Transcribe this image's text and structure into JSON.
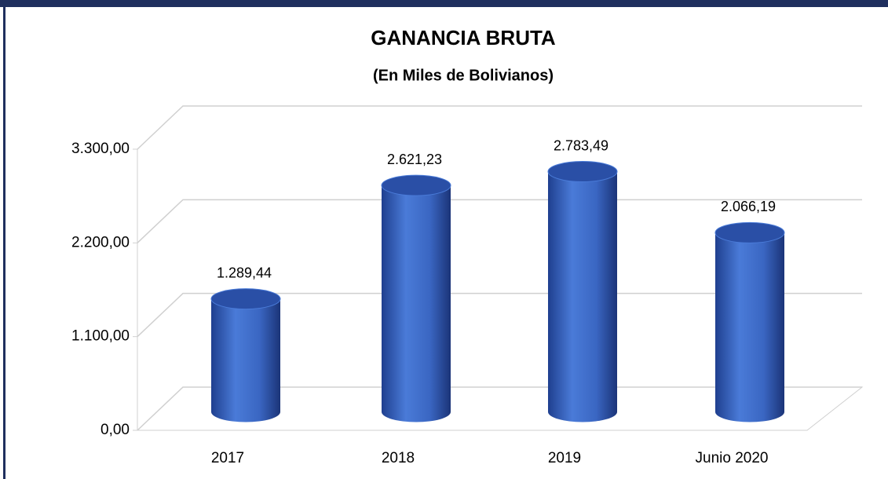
{
  "chart_data": {
    "type": "bar",
    "title": "GANANCIA BRUTA",
    "subtitle": "(En Miles de Bolivianos)",
    "categories": [
      "2017",
      "2018",
      "2019",
      "Junio 2020"
    ],
    "values": [
      1289.44,
      2621.23,
      2783.49,
      2066.19
    ],
    "value_labels": [
      "1.289,44",
      "2.621,23",
      "2.783,49",
      "2.066,19"
    ],
    "color": "#3c66c4",
    "ylim": [
      0,
      3300
    ],
    "yticks": [
      {
        "value": 0,
        "label": "0,00"
      },
      {
        "value": 1100,
        "label": "1.100,00"
      },
      {
        "value": 2200,
        "label": "2.200,00"
      },
      {
        "value": 3300,
        "label": "3.300,00"
      }
    ],
    "grid": true
  }
}
